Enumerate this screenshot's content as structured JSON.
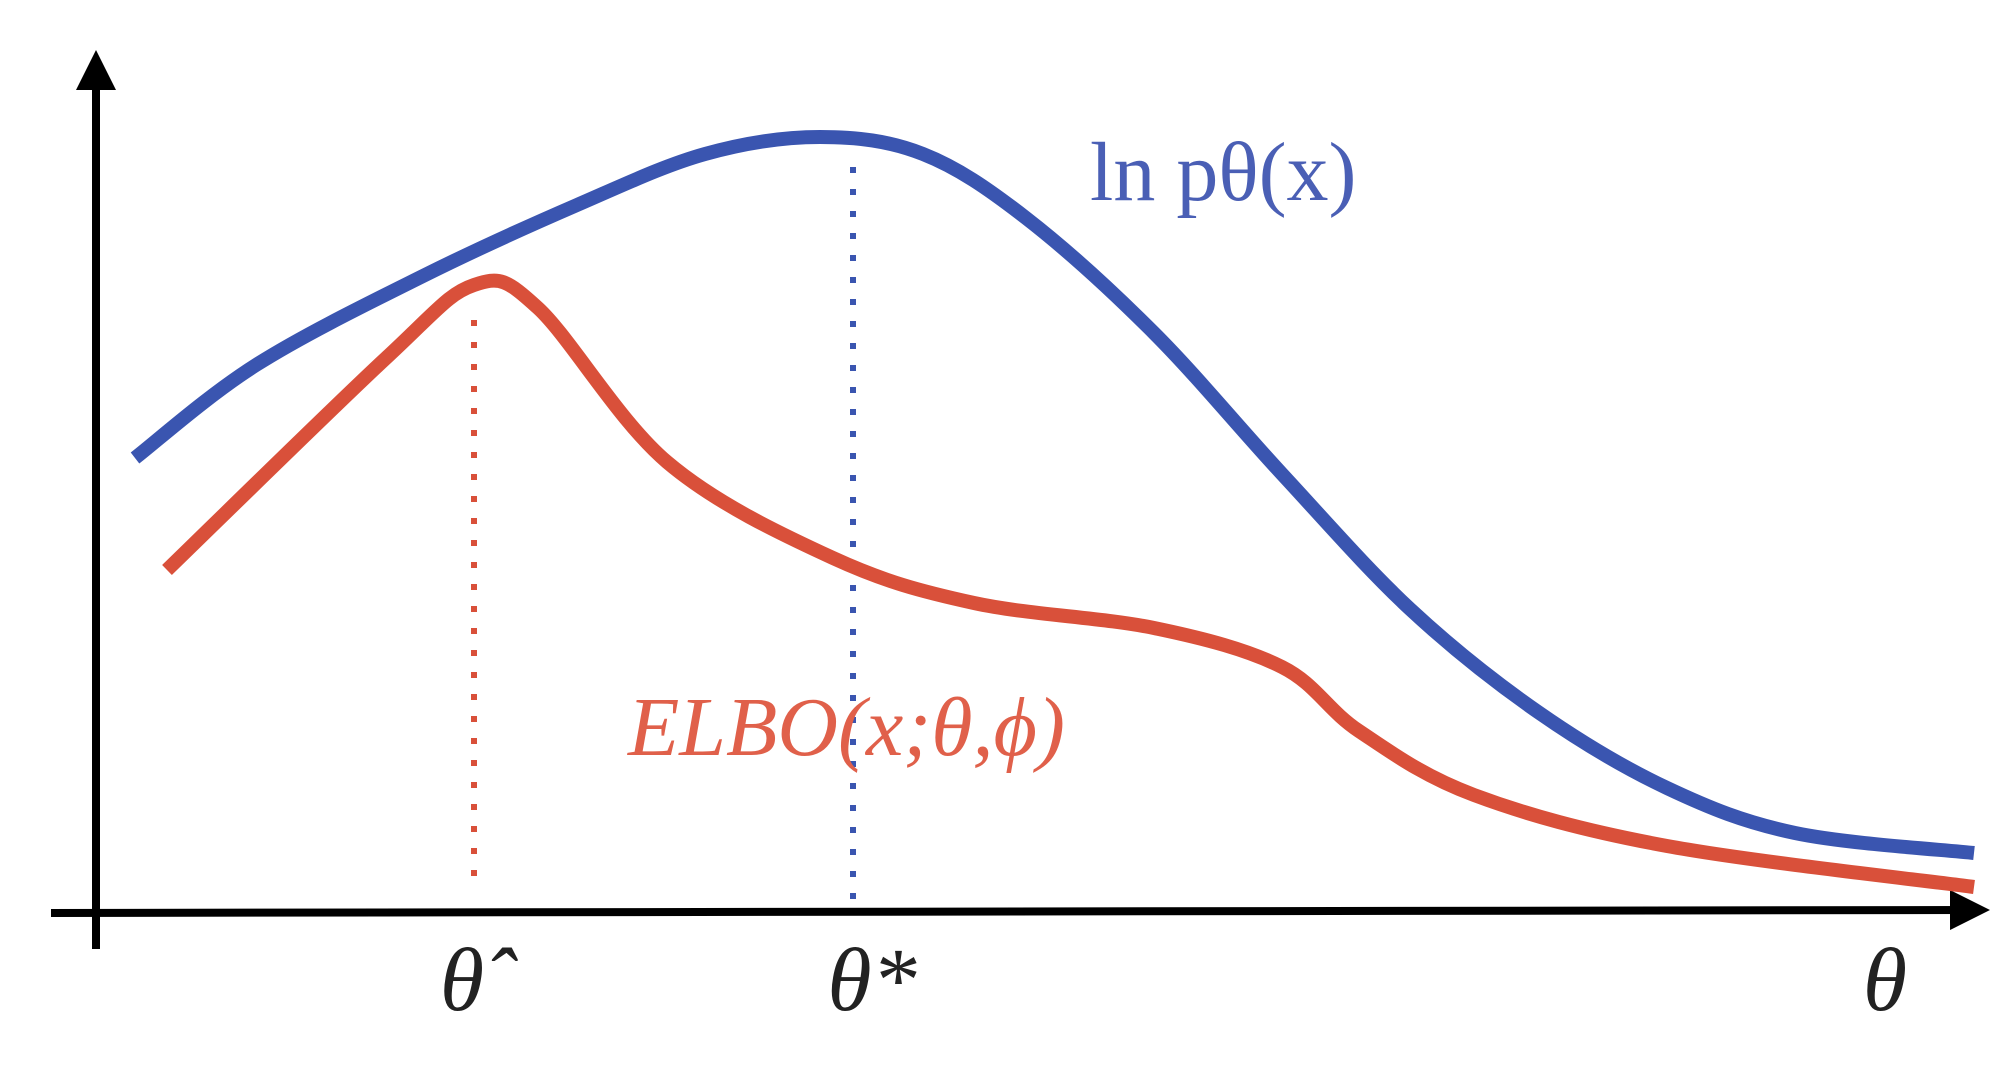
{
  "curves": {
    "log_likelihood": {
      "label": "ln pθ(x)"
    },
    "elbo": {
      "label": "ELBO(x;θ,ϕ)"
    }
  },
  "axis": {
    "theta_hat": "θ̂",
    "theta_star": "θ*",
    "theta": "θ"
  }
}
